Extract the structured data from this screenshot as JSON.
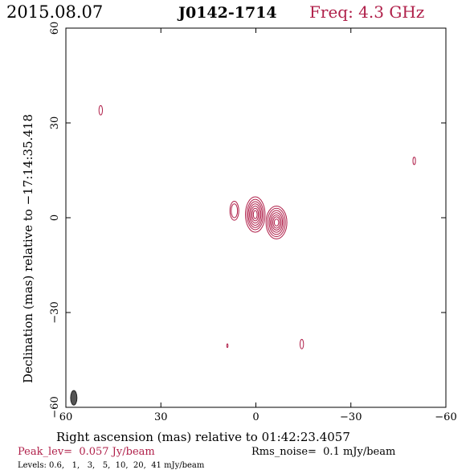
{
  "header": {
    "date": "2015.08.07",
    "source": "J0142-1714",
    "freq": "Freq: 4.3 GHz"
  },
  "colors": {
    "accent": "#b0204a",
    "ink": "#000000",
    "beam": "#555555"
  },
  "chart_data": {
    "type": "contour",
    "xlabel": "Right ascension (mas) relative to 01:42:23.4057",
    "ylabel": "Declination (mas) relative to −17:14:35.418",
    "xlim": [
      60,
      -60
    ],
    "ylim": [
      -60,
      60
    ],
    "xticks": [
      60,
      30,
      0,
      -30,
      -60
    ],
    "yticks": [
      -60,
      -30,
      0,
      30,
      60
    ],
    "xtick_labels": [
      "60",
      "30",
      "0",
      "−30",
      "−60"
    ],
    "ytick_labels": [
      "−60",
      "−30",
      "0",
      "30",
      "60"
    ],
    "grid": false,
    "peak_level": "Peak_lev=  0.057 Jy/beam",
    "rms_noise": "Rms_noise=  0.1 mJy/beam",
    "levels_text": "Levels: 0.6,   1,   3,   5,  10,  20,  41 mJy/beam",
    "levels_mJy": [
      0.6,
      1,
      3,
      5,
      10,
      20,
      41
    ],
    "components": [
      {
        "ra": 0.2,
        "dec": 1.0,
        "rx": [
          3.1,
          2.6,
          2.2,
          1.8,
          1.4,
          1.0,
          0.6
        ],
        "ry": [
          5.6,
          4.8,
          4.1,
          3.4,
          2.7,
          2.0,
          1.3
        ]
      },
      {
        "ra": -6.5,
        "dec": -1.5,
        "rx": [
          3.3,
          2.8,
          2.3,
          1.9,
          1.5,
          1.1,
          0.7
        ],
        "ry": [
          5.2,
          4.5,
          3.8,
          3.1,
          2.4,
          1.8,
          1.1
        ]
      },
      {
        "ra": 6.8,
        "dec": 2.2,
        "rx": [
          1.4,
          1.0
        ],
        "ry": [
          3.0,
          2.2
        ]
      },
      {
        "ra": 49.0,
        "dec": 34.0,
        "rx": [
          0.55
        ],
        "ry": [
          1.5
        ]
      },
      {
        "ra": -50.0,
        "dec": 18.0,
        "rx": [
          0.4
        ],
        "ry": [
          1.2
        ]
      },
      {
        "ra": -14.5,
        "dec": -40.0,
        "rx": [
          0.55
        ],
        "ry": [
          1.5
        ]
      },
      {
        "ra": 9.0,
        "dec": -40.5,
        "rx": [
          0.2
        ],
        "ry": [
          0.6
        ]
      }
    ],
    "beam": {
      "ra": 57.5,
      "dec": -57.0,
      "major_mas": 4.6,
      "minor_mas": 2.0
    }
  }
}
